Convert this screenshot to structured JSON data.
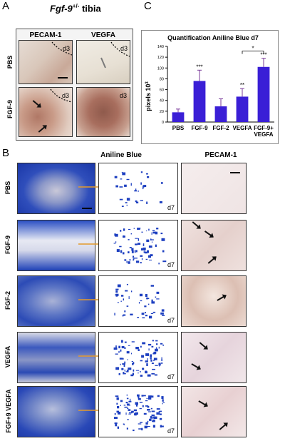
{
  "panelA": {
    "letter": "A",
    "title_gene": "Fgf-9",
    "title_sup": "+/-",
    "title_rest": " tibia",
    "col_headers": [
      "PECAM-1",
      "VEGFA"
    ],
    "row_labels": [
      "PBS",
      "FGF-9"
    ],
    "day_label": "d3"
  },
  "panelB": {
    "letter": "B",
    "col_headers": [
      "Aniline Blue",
      "PECAM-1"
    ],
    "row_labels": [
      "PBS",
      "FGF-9",
      "FGF-2",
      "VEGFA",
      "FGF+9 VEGFA"
    ],
    "day_label": "d7"
  },
  "panelC": {
    "letter": "C"
  },
  "chart_data": {
    "type": "bar",
    "title": "Quantification Aniline Blue d7",
    "ylabel": "pixels 10",
    "ylabel_sup": "3",
    "ylim": [
      0,
      140
    ],
    "yticks": [
      0,
      20,
      40,
      60,
      80,
      100,
      120,
      140
    ],
    "categories": [
      "PBS",
      "FGF-9",
      "FGF-2",
      "VEGFA",
      "FGF-9+ VEGFA"
    ],
    "values": [
      18,
      76,
      29,
      47,
      102
    ],
    "errors": [
      6,
      20,
      14,
      15,
      16
    ],
    "significance": [
      "",
      "***",
      "",
      "**",
      "***"
    ],
    "bracket_label": "*",
    "bar_color": "#3a1fd6",
    "grid": false
  },
  "colors": {
    "stain_blue": "#1d3fc0",
    "arrow_orange": "#e39a2c",
    "tissue_pink": "#e9d3cf"
  }
}
